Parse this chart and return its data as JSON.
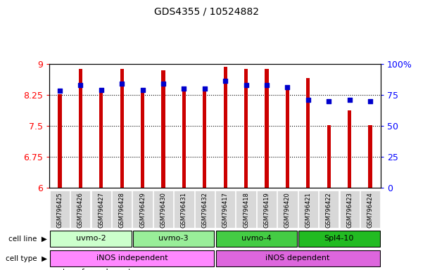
{
  "title": "GDS4355 / 10524882",
  "samples": [
    "GSM796425",
    "GSM796426",
    "GSM796427",
    "GSM796428",
    "GSM796429",
    "GSM796430",
    "GSM796431",
    "GSM796432",
    "GSM796417",
    "GSM796418",
    "GSM796419",
    "GSM796420",
    "GSM796421",
    "GSM796422",
    "GSM796423",
    "GSM796424"
  ],
  "transformed_count": [
    8.27,
    8.88,
    8.38,
    8.87,
    8.3,
    8.84,
    8.4,
    8.4,
    8.92,
    8.87,
    8.88,
    8.38,
    8.65,
    7.52,
    7.88,
    7.52
  ],
  "percentile_rank": [
    78,
    83,
    79,
    84,
    79,
    84,
    80,
    80,
    86,
    83,
    83,
    81,
    71,
    70,
    71,
    70
  ],
  "cell_lines": [
    {
      "label": "uvmo-2",
      "start": 0,
      "end": 4,
      "color": "#ccffcc"
    },
    {
      "label": "uvmo-3",
      "start": 4,
      "end": 8,
      "color": "#99ee99"
    },
    {
      "label": "uvmo-4",
      "start": 8,
      "end": 12,
      "color": "#44cc44"
    },
    {
      "label": "Spl4-10",
      "start": 12,
      "end": 16,
      "color": "#22bb22"
    }
  ],
  "cell_types": [
    {
      "label": "iNOS independent",
      "start": 0,
      "end": 8,
      "color": "#ff88ff"
    },
    {
      "label": "iNOS dependent",
      "start": 8,
      "end": 16,
      "color": "#dd66dd"
    }
  ],
  "bar_color": "#cc0000",
  "dot_color": "#0000cc",
  "ylim_left": [
    6,
    9
  ],
  "ylim_right": [
    0,
    100
  ],
  "yticks_left": [
    6,
    6.75,
    7.5,
    8.25,
    9
  ],
  "yticks_right": [
    0,
    25,
    50,
    75,
    100
  ],
  "ytick_labels_right": [
    "0",
    "25",
    "50",
    "75",
    "100%"
  ],
  "bar_width": 0.18,
  "background_color": "#ffffff",
  "grid_color": "#555555"
}
